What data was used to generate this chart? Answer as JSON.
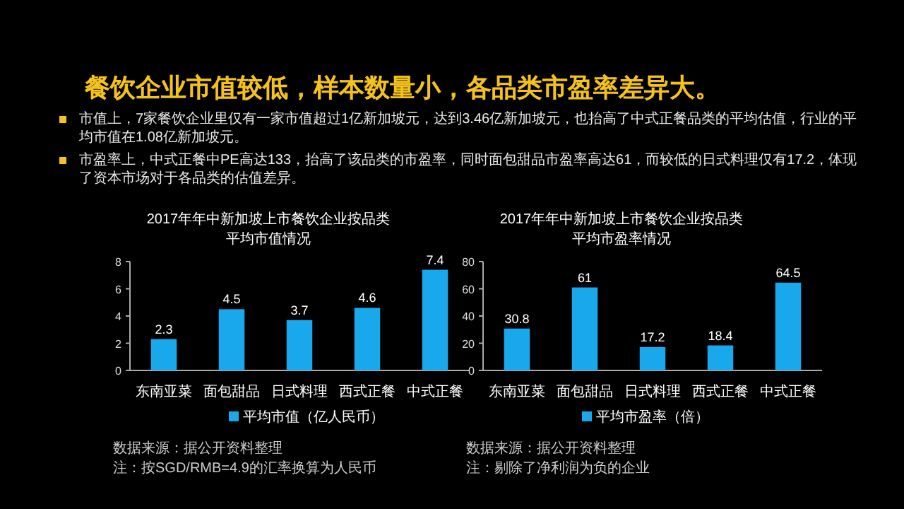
{
  "chart_data": [
    {
      "type": "other",
      "title": "餐饮企业市值较低，样本数量小，各品类市盈率差异大。",
      "annotations": [
        "市值上，7家餐饮企业里仅有一家市值超过1亿新加坡元，达到3.46亿新加坡元，也抬高了中式正餐品类的平均估值，行业的平均市值在1.08亿新加坡元。",
        "市盈率上，中式正餐中PE高达133，抬高了该品类的市盈率，同时面包甜品市盈率高达61，而较低的日式料理仅有17.2，体现了资本市场对于各品类的估值差异。"
      ]
    },
    {
      "type": "bar",
      "title": "2017年年中新加坡上市餐饮企业按品类",
      "subtitle": "平均市值情况",
      "categories": [
        "东南亚菜",
        "面包甜品",
        "日式料理",
        "西式正餐",
        "中式正餐"
      ],
      "series": [
        {
          "name": "平均市值（亿人民币）",
          "color": "#1aa8ec",
          "values": [
            2.3,
            4.5,
            3.7,
            4.6,
            7.4
          ]
        }
      ],
      "ylim": [
        0,
        8
      ],
      "yticks": [
        0,
        2,
        4,
        6,
        8
      ],
      "data_labels": true,
      "legend": "bottom",
      "grid": false,
      "annotations": [
        "数据来源：据公开资料整理",
        "注：按SGD/RMB=4.9的汇率换算为人民币"
      ]
    },
    {
      "type": "bar",
      "title": "2017年年中新加坡上市餐饮企业按品类",
      "subtitle": "平均市盈率情况",
      "categories": [
        "东南亚菜",
        "面包甜品",
        "日式料理",
        "西式正餐",
        "中式正餐"
      ],
      "series": [
        {
          "name": "平均市盈率（倍）",
          "color": "#1aa8ec",
          "values": [
            30.8,
            61,
            17.2,
            18.4,
            64.5
          ]
        }
      ],
      "ylim": [
        0,
        80
      ],
      "yticks": [
        0,
        20,
        40,
        60,
        80
      ],
      "data_labels": true,
      "legend": "bottom",
      "grid": false,
      "annotations": [
        "数据来源：据公开资料整理",
        "注：剔除了净利润为负的企业"
      ]
    }
  ]
}
